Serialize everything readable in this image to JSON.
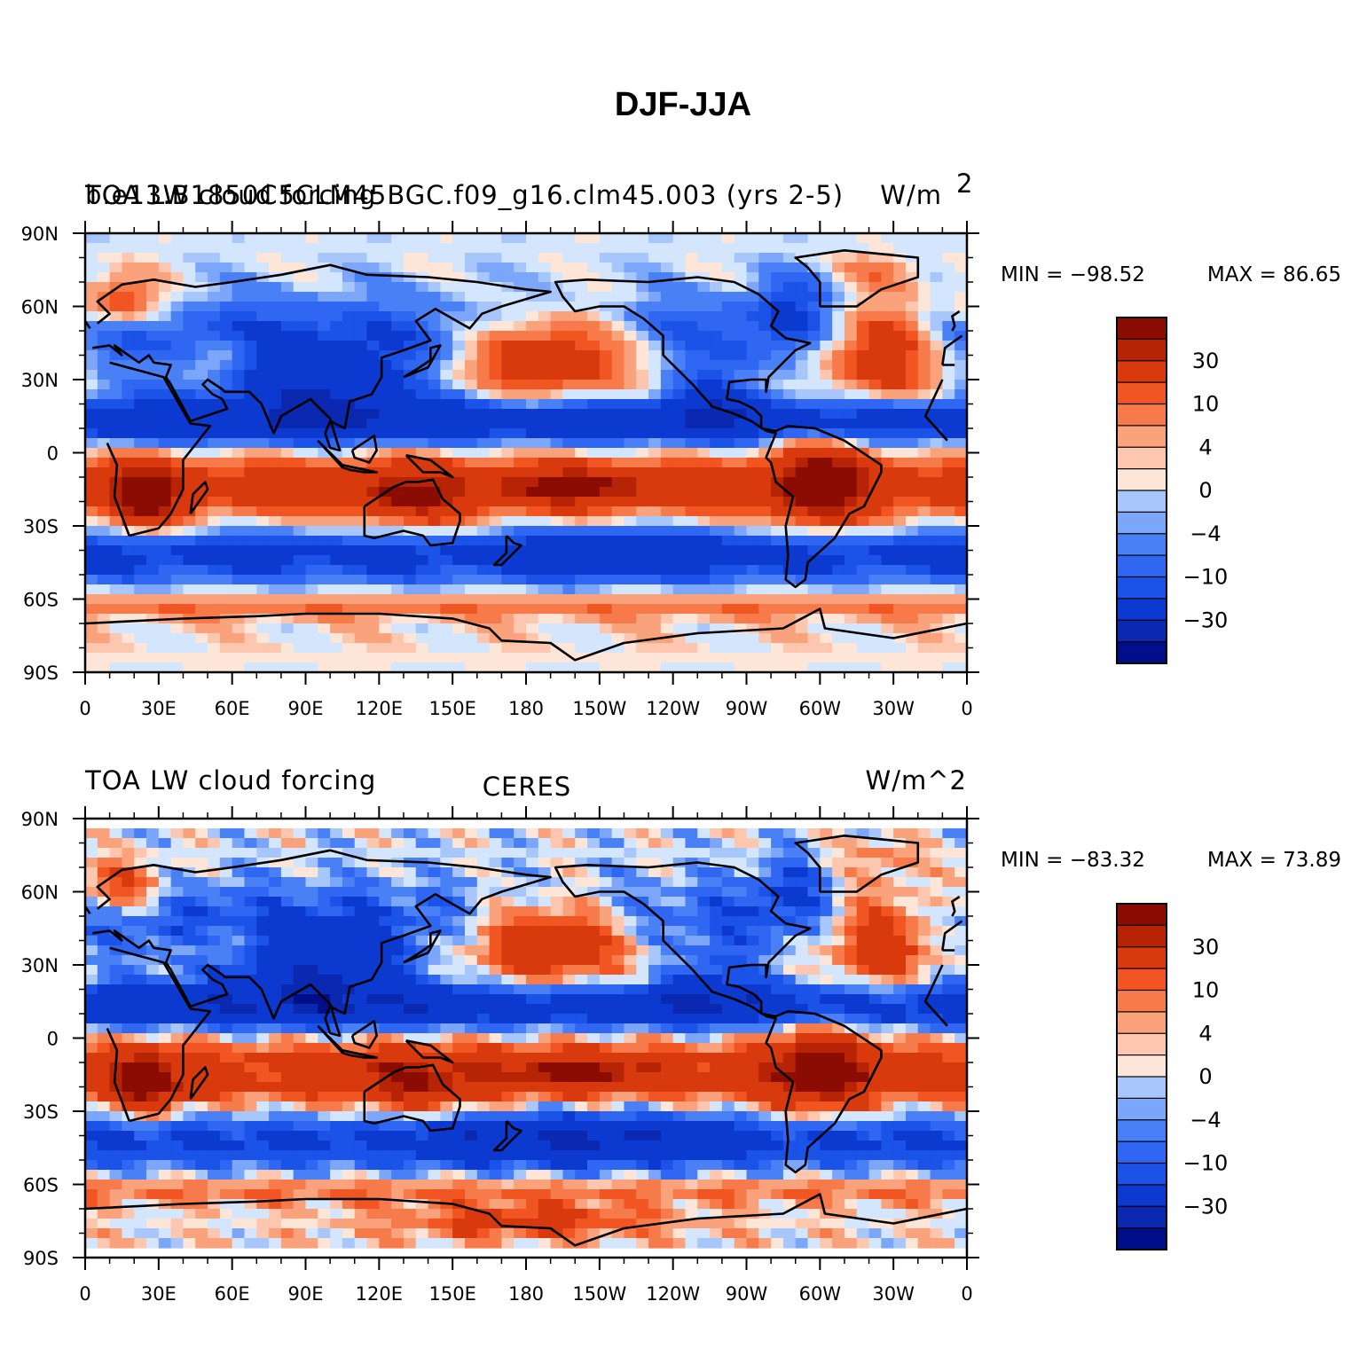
{
  "figure_title": "DJF-JJA",
  "chart_data": [
    {
      "type": "heatmap",
      "panel": "top",
      "title": "TOA LW cloud forcing",
      "case_label": "b.e13.B1850C5CLM45BGC.f09_g16.clm45.003 (yrs 2-5)",
      "units_label": "W/m",
      "units_superscript": "2",
      "min_label": "MIN = −98.52",
      "max_label": "MAX =  86.65",
      "min": -98.52,
      "max": 86.65,
      "xlim": [
        0,
        360
      ],
      "ylim": [
        -90,
        90
      ],
      "xticks": [
        "0",
        "30E",
        "60E",
        "90E",
        "120E",
        "150E",
        "180",
        "150W",
        "120W",
        "90W",
        "60W",
        "30W",
        "0"
      ],
      "yticks": [
        "90N",
        "60N",
        "30N",
        "0",
        "30S",
        "60S",
        "90S"
      ],
      "contour_levels": [
        -50,
        -40,
        -30,
        -20,
        -15,
        -10,
        -8,
        -6,
        -4,
        -2,
        0,
        2,
        4,
        6,
        8,
        10,
        15,
        20,
        30,
        40,
        50
      ],
      "colorbar_labels": [
        "30",
        "10",
        "4",
        "0",
        "−4",
        "−10",
        "−30"
      ]
    },
    {
      "type": "heatmap",
      "panel": "bottom",
      "title": "TOA LW cloud forcing",
      "case_label": "CERES",
      "units_label": "W/m^2",
      "min_label": "MIN = −83.32",
      "max_label": "MAX =  73.89",
      "min": -83.32,
      "max": 73.89,
      "xlim": [
        0,
        360
      ],
      "ylim": [
        -90,
        90
      ],
      "xticks": [
        "0",
        "30E",
        "60E",
        "90E",
        "120E",
        "150E",
        "180",
        "150W",
        "120W",
        "90W",
        "60W",
        "30W",
        "0"
      ],
      "yticks": [
        "90N",
        "60N",
        "30N",
        "0",
        "30S",
        "60S",
        "90S"
      ],
      "contour_levels": [
        -50,
        -40,
        -30,
        -20,
        -15,
        -10,
        -8,
        -6,
        -4,
        -2,
        0,
        2,
        4,
        6,
        8,
        10,
        15,
        20,
        30,
        40,
        50
      ],
      "colorbar_labels": [
        "30",
        "10",
        "4",
        "0",
        "−4",
        "−10",
        "−30"
      ]
    }
  ],
  "colormap": [
    "#000f89",
    "#0a28b0",
    "#0c3ad0",
    "#1b52e8",
    "#2f66f2",
    "#4a80f6",
    "#7ba6f9",
    "#a7c6fb",
    "#d3e6fd",
    "#fde6d8",
    "#fcc7ae",
    "#f9a27b",
    "#f77a4a",
    "#f05522",
    "#d83a0e",
    "#b62405",
    "#8a0c02"
  ]
}
